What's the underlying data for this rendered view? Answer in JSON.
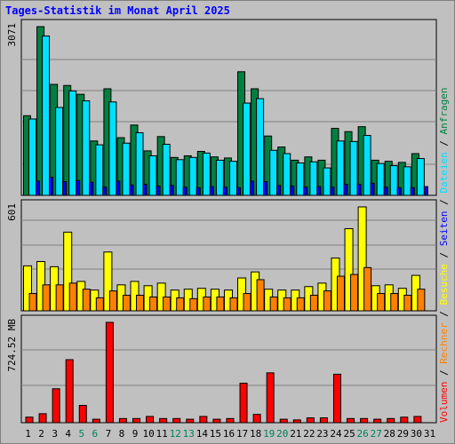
{
  "chart_data": {
    "type": "bar",
    "title": "Tages-Statistik im Monat April 2025",
    "categories": [
      "1",
      "2",
      "3",
      "4",
      "5",
      "6",
      "7",
      "8",
      "9",
      "10",
      "11",
      "12",
      "13",
      "14",
      "15",
      "16",
      "17",
      "18",
      "19",
      "20",
      "21",
      "22",
      "23",
      "24",
      "25",
      "26",
      "27",
      "28",
      "29",
      "30",
      "31"
    ],
    "weekend_days": [
      "5",
      "6",
      "12",
      "13",
      "19",
      "20",
      "26",
      "27"
    ],
    "panels": [
      {
        "ylim": [
          0,
          3071
        ],
        "max_label": "3071",
        "series": [
          {
            "name": "Anfragen",
            "color": "#008040",
            "values": [
              1450,
              3071,
              2020,
              2000,
              1840,
              990,
              1940,
              1050,
              1280,
              810,
              1070,
              690,
              720,
              800,
              700,
              680,
              2250,
              1940,
              1080,
              880,
              640,
              700,
              640,
              1220,
              1160,
              1250,
              640,
              620,
              600,
              760,
              null
            ]
          },
          {
            "name": "Dateien",
            "color": "#00e0ff",
            "values": [
              1390,
              2900,
              1600,
              1900,
              1720,
              920,
              1700,
              950,
              1140,
              720,
              930,
              650,
              690,
              770,
              640,
              620,
              1680,
              1760,
              820,
              760,
              590,
              610,
              500,
              990,
              980,
              1090,
              580,
              540,
              520,
              670,
              null
            ]
          },
          {
            "name": "Seiten",
            "color": "#0000ff",
            "values": [
              260,
              330,
              250,
              270,
              240,
              150,
              260,
              190,
              200,
              170,
              180,
              150,
              140,
              160,
              150,
              140,
              260,
              250,
              180,
              170,
              150,
              160,
              150,
              200,
              200,
              220,
              150,
              140,
              140,
              160,
              null
            ]
          }
        ]
      },
      {
        "ylim": [
          0,
          601
        ],
        "max_label": "601",
        "series": [
          {
            "name": "Besuche",
            "color": "#ffff00",
            "values": [
              260,
              285,
              255,
              455,
              170,
              120,
              340,
              150,
              170,
              145,
              160,
              120,
              125,
              130,
              125,
              120,
              190,
              225,
              125,
              120,
              120,
              140,
              160,
              305,
              475,
              601,
              145,
              150,
              130,
              205,
              null
            ]
          },
          {
            "name": "Rechner",
            "color": "#ff8000",
            "values": [
              100,
              150,
              150,
              160,
              125,
              75,
              115,
              90,
              90,
              80,
              80,
              75,
              70,
              80,
              80,
              75,
              100,
              180,
              80,
              75,
              75,
              90,
              115,
              200,
              210,
              250,
              100,
              100,
              90,
              125,
              null
            ]
          }
        ]
      },
      {
        "ylim": [
          0,
          724.52
        ],
        "max_label": "724.52 MB",
        "series": [
          {
            "name": "Volumen",
            "color": "#ff0000",
            "values": [
              40,
              65,
              245,
              455,
              125,
              25,
              724.52,
              30,
              30,
              45,
              30,
              30,
              25,
              45,
              25,
              30,
              285,
              60,
              360,
              25,
              20,
              35,
              35,
              350,
              30,
              30,
              25,
              30,
              40,
              45,
              null
            ]
          }
        ]
      }
    ],
    "legend_right": [
      {
        "text": "Volumen",
        "color": "#ff0000"
      },
      {
        "text": " / ",
        "color": "#000000"
      },
      {
        "text": "Rechner",
        "color": "#ff8000"
      },
      {
        "text": " / ",
        "color": "#000000"
      },
      {
        "text": "Besuche",
        "color": "#ffff00"
      },
      {
        "text": " / ",
        "color": "#000000"
      },
      {
        "text": "Seiten",
        "color": "#0000ff"
      },
      {
        "text": " / ",
        "color": "#000000"
      },
      {
        "text": "Dateien",
        "color": "#00e0ff"
      },
      {
        "text": " / ",
        "color": "#000000"
      },
      {
        "text": "Anfragen",
        "color": "#008040"
      }
    ],
    "colors": {
      "background": "#c0c0c0",
      "weekday_label": "#000000",
      "weekend_label": "#00805c",
      "title": "#0000ff",
      "gridline": "#808080"
    }
  }
}
